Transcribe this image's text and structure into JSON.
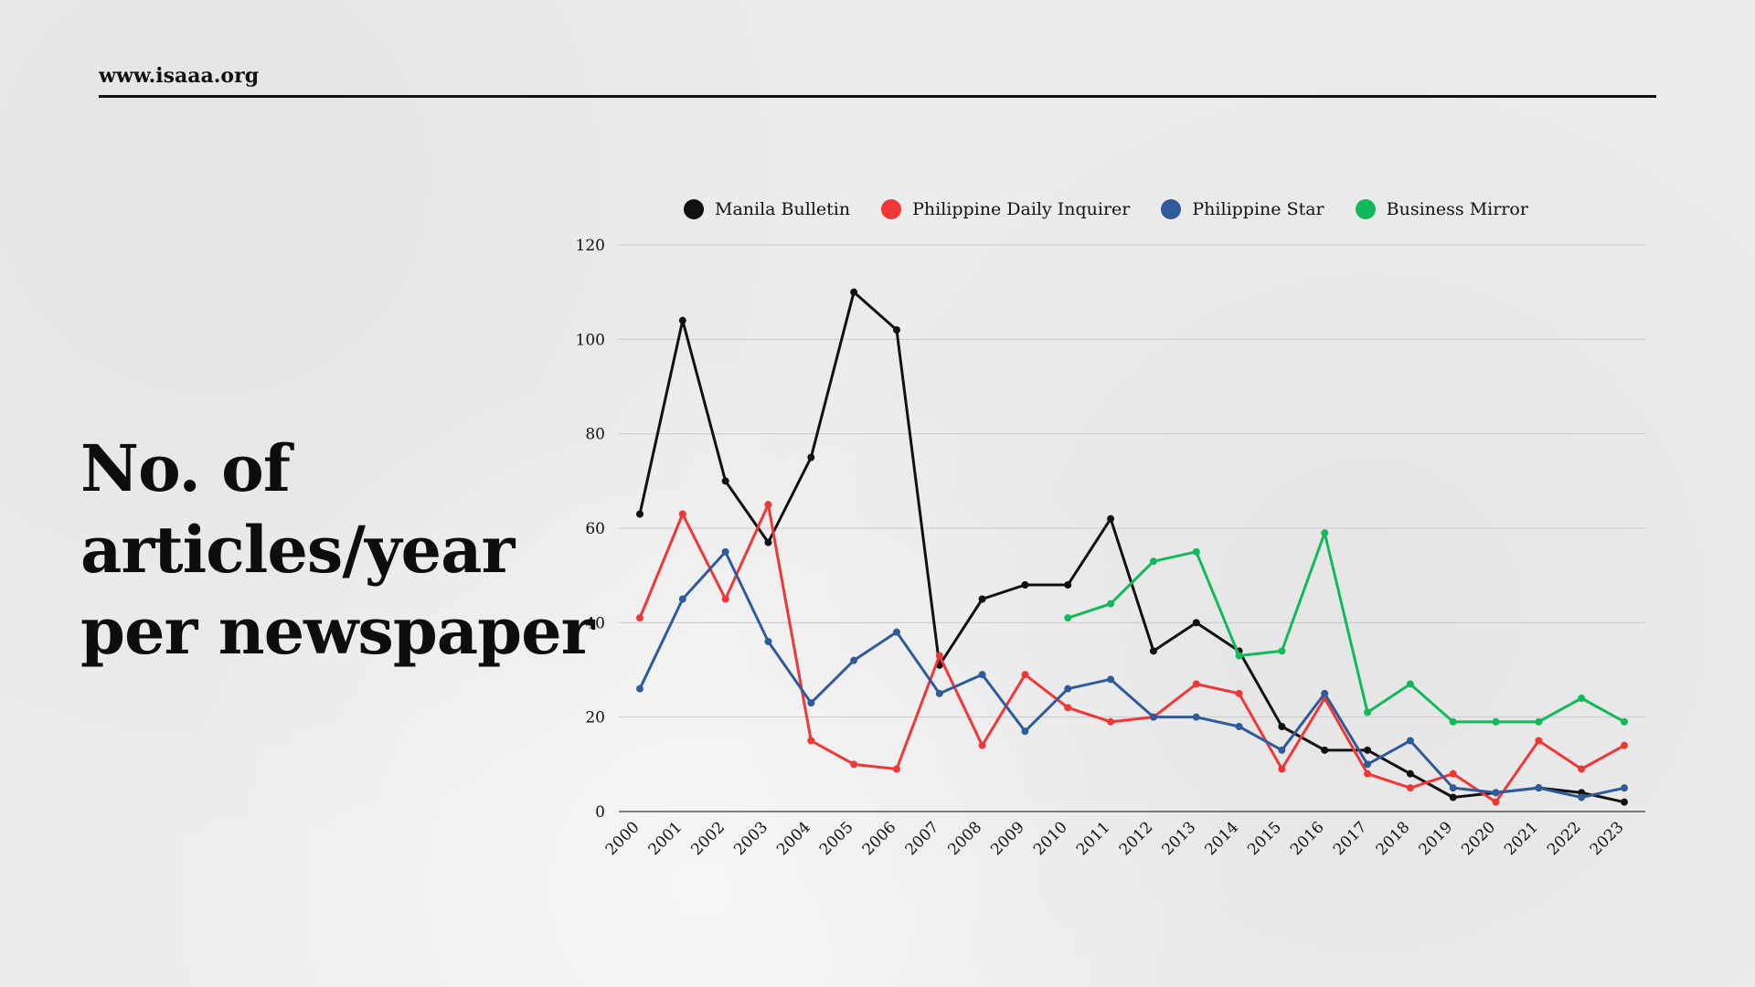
{
  "header": {
    "url": "www.isaaa.org"
  },
  "title_lines": [
    "No. of",
    "articles/year",
    "per newspaper"
  ],
  "chart_data": {
    "type": "line",
    "x": [
      "2000",
      "2001",
      "2002",
      "2003",
      "2004",
      "2005",
      "2006",
      "2007",
      "2008",
      "2009",
      "2010",
      "2011",
      "2012",
      "2013",
      "2014",
      "2015",
      "2016",
      "2017",
      "2018",
      "2019",
      "2020",
      "2021",
      "2022",
      "2023"
    ],
    "ylim": [
      0,
      120
    ],
    "yticks": [
      0,
      20,
      40,
      60,
      80,
      100,
      120
    ],
    "grid": true,
    "legend_position": "top",
    "series": [
      {
        "name": "Manila Bulletin",
        "color": "#111111",
        "values": [
          63,
          104,
          70,
          57,
          75,
          110,
          102,
          31,
          45,
          48,
          48,
          62,
          34,
          40,
          34,
          18,
          13,
          13,
          8,
          3,
          4,
          5,
          4,
          2
        ]
      },
      {
        "name": "Philippine Daily Inquirer",
        "color": "#f03737",
        "values": [
          41,
          63,
          45,
          65,
          15,
          10,
          9,
          33,
          14,
          29,
          22,
          19,
          20,
          27,
          25,
          9,
          24,
          8,
          5,
          8,
          2,
          15,
          9,
          14
        ]
      },
      {
        "name": "Philippine Star",
        "color": "#2f5b9a",
        "values": [
          26,
          45,
          55,
          36,
          23,
          32,
          38,
          25,
          29,
          17,
          26,
          28,
          20,
          20,
          18,
          13,
          25,
          10,
          15,
          5,
          4,
          5,
          3,
          5
        ]
      },
      {
        "name": "Business Mirror",
        "color": "#10b95a",
        "values": [
          null,
          null,
          null,
          null,
          null,
          null,
          null,
          null,
          null,
          null,
          41,
          44,
          53,
          55,
          33,
          34,
          59,
          21,
          27,
          19,
          19,
          19,
          24,
          19
        ]
      }
    ]
  }
}
